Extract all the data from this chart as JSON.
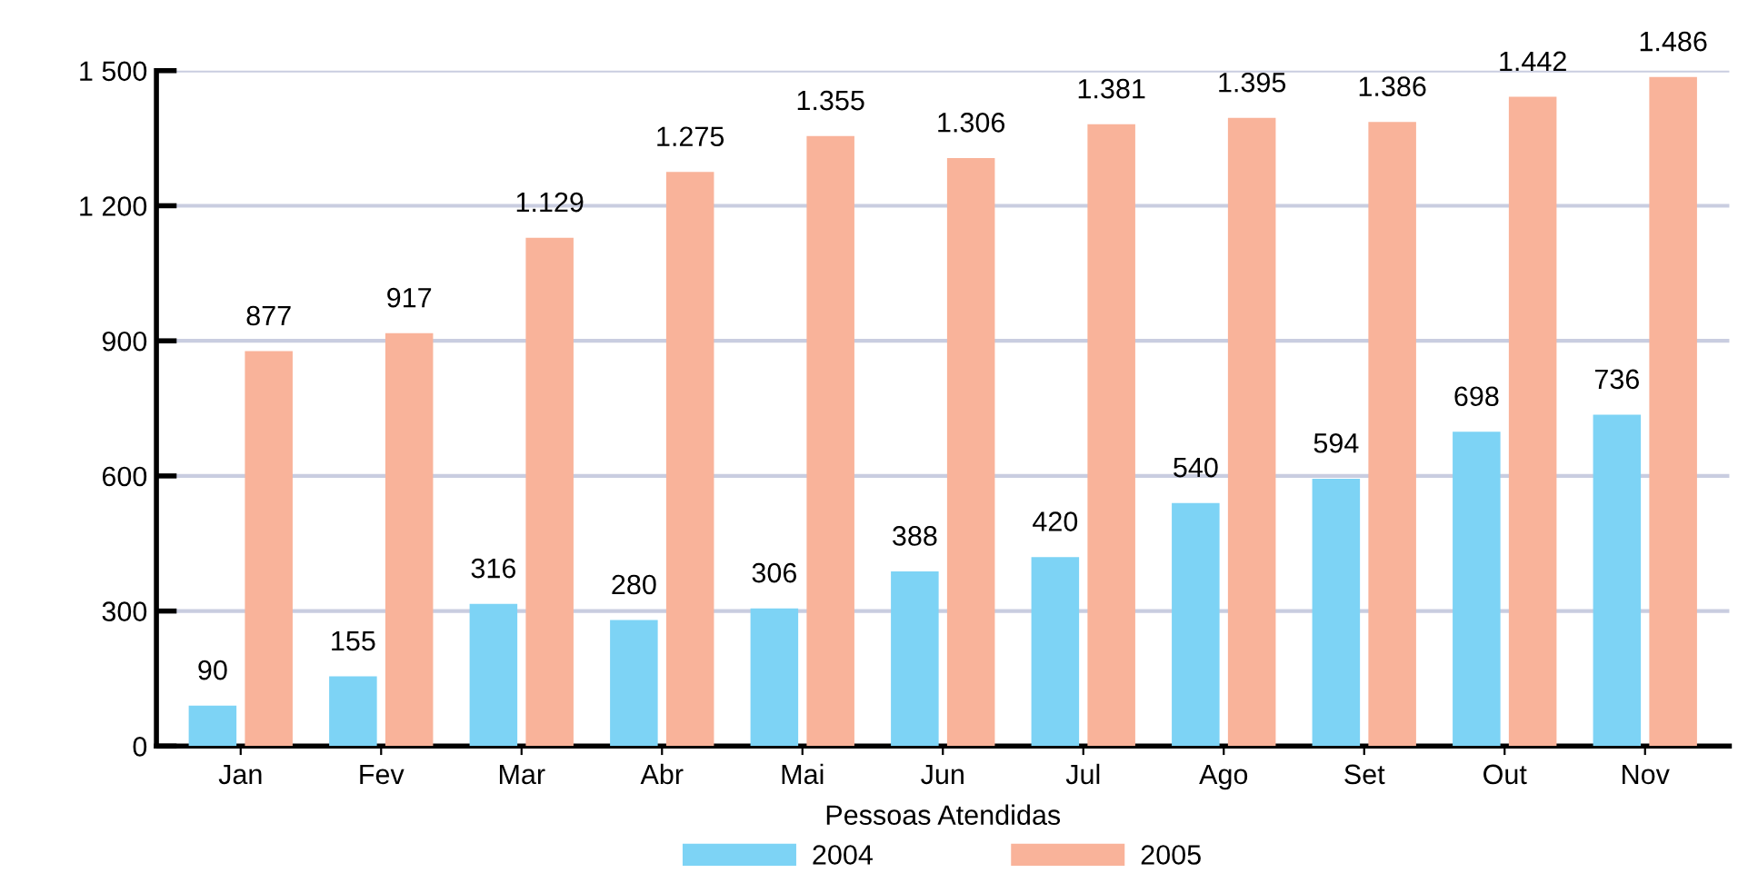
{
  "chart_data": {
    "type": "bar",
    "legend_title": "Pessoas Atendidas",
    "categories": [
      "Jan",
      "Fev",
      "Mar",
      "Abr",
      "Mai",
      "Jun",
      "Jul",
      "Ago",
      "Set",
      "Out",
      "Nov"
    ],
    "series": [
      {
        "name": "2004",
        "color": "#7dd3f5",
        "values": [
          90,
          155,
          316,
          280,
          306,
          388,
          420,
          540,
          594,
          698,
          736
        ],
        "value_labels": [
          "90",
          "155",
          "316",
          "280",
          "306",
          "388",
          "420",
          "540",
          "594",
          "698",
          "736"
        ]
      },
      {
        "name": "2005",
        "color": "#f9b39a",
        "values": [
          877,
          917,
          1129,
          1275,
          1355,
          1306,
          1381,
          1395,
          1386,
          1442,
          1486
        ],
        "value_labels": [
          "877",
          "917",
          "1.129",
          "1.275",
          "1.355",
          "1.306",
          "1.381",
          "1.395",
          "1.386",
          "1.442",
          "1.486"
        ]
      }
    ],
    "ylim": [
      0,
      1500
    ],
    "yticks": [
      0,
      300,
      600,
      900,
      {
        "value": 1200,
        "label": "1 200"
      },
      {
        "value": 1500,
        "label": "1 500"
      }
    ],
    "grid": "y",
    "legend": "bottom"
  }
}
